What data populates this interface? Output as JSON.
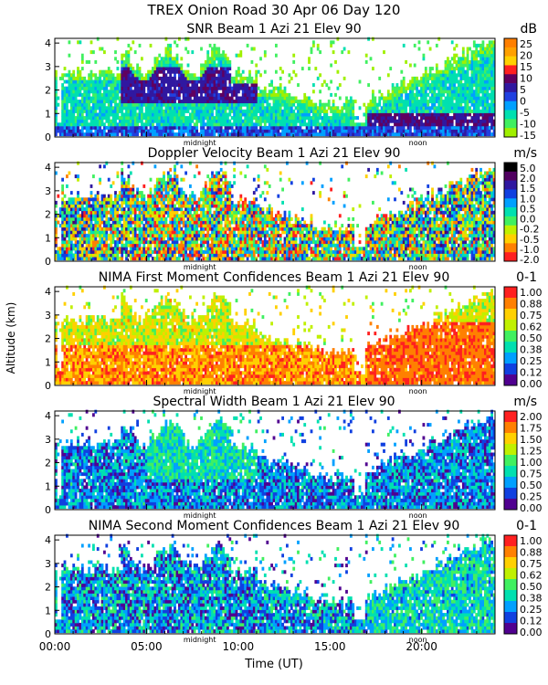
{
  "figure": {
    "title": "TREX Onion Road  30 Apr 06 Day 120",
    "y_axis_label": "Altitude (km)",
    "x_axis_label": "Time (UT)",
    "x_tick_labels": [
      "00:00",
      "05:00",
      "10:00",
      "15:00",
      "20:00"
    ],
    "x_ticks_hours": [
      0,
      5,
      10,
      15,
      20
    ],
    "x_range_hours": [
      0,
      24
    ],
    "marker_midnight": "midnight",
    "marker_noon": "noon",
    "marker_midnight_hour": 7.9,
    "marker_noon_hour": 19.8
  },
  "chart_data": [
    {
      "type": "heatmap",
      "title": "SNR Beam 1 Azi  21 Elev 90",
      "unit": "dB",
      "xlabel": "Time (UT)",
      "ylabel": "Altitude (km)",
      "xlim": [
        0,
        24
      ],
      "ylim": [
        0,
        4.2
      ],
      "y_ticks": [
        0,
        1,
        2,
        3,
        4
      ],
      "colorbar_ticks": [
        "25",
        "20",
        "15",
        "10",
        "5",
        "0",
        "-5",
        "-10",
        "-15"
      ],
      "colorbar_colors": [
        "#ff7f00",
        "#ffa000",
        "#ffd000",
        "#ff2020",
        "#600060",
        "#3018a0",
        "#2040e0",
        "#00a0ff",
        "#00e0b0",
        "#40f060",
        "#a0f000"
      ],
      "pattern": "snr"
    },
    {
      "type": "heatmap",
      "title": "Doppler Velocity Beam 1 Azi  21 Elev 90",
      "unit": "m/s",
      "xlabel": "Time (UT)",
      "ylabel": "Altitude (km)",
      "xlim": [
        0,
        24
      ],
      "ylim": [
        0,
        4.2
      ],
      "y_ticks": [
        0,
        1,
        2,
        3,
        4
      ],
      "colorbar_ticks": [
        "5.0",
        "2.0",
        "1.5",
        "1.0",
        "0.5",
        "0.0",
        "-0.2",
        "-0.5",
        "-1.0",
        "-2.0"
      ],
      "colorbar_colors": [
        "#000000",
        "#500060",
        "#3018a0",
        "#1040e0",
        "#00a0ff",
        "#00e0b0",
        "#40f060",
        "#c0f000",
        "#ffd000",
        "#ff8000",
        "#ff2020"
      ],
      "pattern": "doppler"
    },
    {
      "type": "heatmap",
      "title": "NIMA First Moment Confidences Beam 1 Azi  21 Elev 90",
      "unit": "0-1",
      "xlabel": "Time (UT)",
      "ylabel": "Altitude (km)",
      "xlim": [
        0,
        24
      ],
      "ylim": [
        0,
        4.2
      ],
      "y_ticks": [
        0,
        1,
        2,
        3,
        4
      ],
      "colorbar_ticks": [
        "1.00",
        "0.88",
        "0.75",
        "0.62",
        "0.50",
        "0.38",
        "0.25",
        "0.12",
        "0.00"
      ],
      "colorbar_colors": [
        "#ff2020",
        "#ff8000",
        "#ffd000",
        "#c0f000",
        "#40f060",
        "#00e0b0",
        "#00a0ff",
        "#1040e0",
        "#500090"
      ],
      "pattern": "conf1"
    },
    {
      "type": "heatmap",
      "title": "Spectral Width Beam 1 Azi  21 Elev 90",
      "unit": "m/s",
      "xlabel": "Time (UT)",
      "ylabel": "Altitude (km)",
      "xlim": [
        0,
        24
      ],
      "ylim": [
        0,
        4.2
      ],
      "y_ticks": [
        0,
        1,
        2,
        3,
        4
      ],
      "colorbar_ticks": [
        "2.00",
        "1.75",
        "1.50",
        "1.25",
        "1.00",
        "0.75",
        "0.50",
        "0.25",
        "0.00"
      ],
      "colorbar_colors": [
        "#ff2020",
        "#ff8000",
        "#ffd000",
        "#c0f000",
        "#40f060",
        "#00e0b0",
        "#00a0ff",
        "#1040e0",
        "#500090"
      ],
      "pattern": "width"
    },
    {
      "type": "heatmap",
      "title": "NIMA Second Moment Confidences Beam 1 Azi  21 Elev 90",
      "unit": "0-1",
      "xlabel": "Time (UT)",
      "ylabel": "Altitude (km)",
      "xlim": [
        0,
        24
      ],
      "ylim": [
        0,
        4.2
      ],
      "y_ticks": [
        0,
        1,
        2,
        3,
        4
      ],
      "colorbar_ticks": [
        "1.00",
        "0.88",
        "0.75",
        "0.62",
        "0.50",
        "0.38",
        "0.25",
        "0.12",
        "0.00"
      ],
      "colorbar_colors": [
        "#ff2020",
        "#ff8000",
        "#ffd000",
        "#c0f000",
        "#40f060",
        "#00e0b0",
        "#00a0ff",
        "#1040e0",
        "#500090"
      ],
      "pattern": "conf2"
    }
  ]
}
